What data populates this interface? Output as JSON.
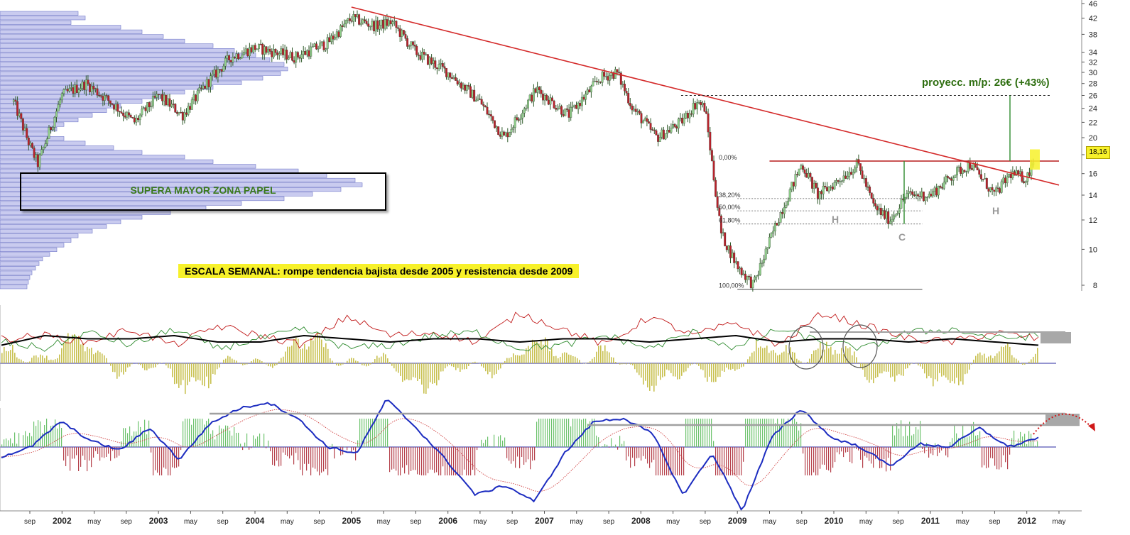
{
  "chart_data": [
    {
      "type": "line",
      "panel": "price",
      "scale": "log",
      "x_axis_labels": [
        "sep",
        "2002",
        "may",
        "sep",
        "2003",
        "may",
        "sep",
        "2004",
        "may",
        "sep",
        "2005",
        "may",
        "sep",
        "2006",
        "may",
        "sep",
        "2007",
        "may",
        "sep",
        "2008",
        "may",
        "sep",
        "2009",
        "may",
        "sep",
        "2010",
        "may",
        "sep",
        "2011",
        "may",
        "sep",
        "2012",
        "may"
      ],
      "y_ticks": [
        8,
        10,
        12,
        14,
        16,
        18,
        20,
        22,
        24,
        26,
        28,
        30,
        32,
        34,
        38,
        42,
        46
      ],
      "ylim": [
        7.5,
        46
      ],
      "price_series": [
        [
          "2001-07",
          25
        ],
        [
          "2001-09",
          19
        ],
        [
          "2001-10",
          17
        ],
        [
          "2002-01",
          26
        ],
        [
          "2002-04",
          28
        ],
        [
          "2002-07",
          25
        ],
        [
          "2002-10",
          22
        ],
        [
          "2003-01",
          26
        ],
        [
          "2003-04",
          23
        ],
        [
          "2003-07",
          28
        ],
        [
          "2003-10",
          33
        ],
        [
          "2004-01",
          35
        ],
        [
          "2004-06",
          33
        ],
        [
          "2004-10",
          36
        ],
        [
          "2005-01",
          42
        ],
        [
          "2005-04",
          40
        ],
        [
          "2005-06",
          41
        ],
        [
          "2005-09",
          34
        ],
        [
          "2006-01",
          30
        ],
        [
          "2006-05",
          25
        ],
        [
          "2006-08",
          20
        ],
        [
          "2006-12",
          27
        ],
        [
          "2007-04",
          23
        ],
        [
          "2007-08",
          29
        ],
        [
          "2007-10",
          30
        ],
        [
          "2007-12",
          24
        ],
        [
          "2008-03",
          20
        ],
        [
          "2008-06",
          22
        ],
        [
          "2008-08",
          25
        ],
        [
          "2008-09",
          24
        ],
        [
          "2008-10",
          16
        ],
        [
          "2008-11",
          11
        ],
        [
          "2009-01",
          9
        ],
        [
          "2009-03",
          8
        ],
        [
          "2009-06",
          12
        ],
        [
          "2009-09",
          17
        ],
        [
          "2009-11",
          14
        ],
        [
          "2010-01",
          15
        ],
        [
          "2010-04",
          17
        ],
        [
          "2010-06",
          13
        ],
        [
          "2010-08",
          12
        ],
        [
          "2010-10",
          14
        ],
        [
          "2011-01",
          14
        ],
        [
          "2011-04",
          16
        ],
        [
          "2011-06",
          17
        ],
        [
          "2011-09",
          14
        ],
        [
          "2011-11",
          16
        ],
        [
          "2012-01",
          15.5
        ],
        [
          "2012-02",
          18.16
        ]
      ],
      "last_price_label": "18,16",
      "resistance_level": 17.3,
      "downtrend_line": [
        [
          "2005-01",
          45
        ],
        [
          "2012-05",
          14.9
        ]
      ],
      "projection_target": 26,
      "fibonacci_levels": [
        {
          "label": "0,00%",
          "value": 17.3
        },
        {
          "label": "38,20%",
          "value": 13.7
        },
        {
          "label": "50,00%",
          "value": 12.7
        },
        {
          "label": "61,80%",
          "value": 11.7
        },
        {
          "label": "100,00%",
          "value": 7.8
        }
      ],
      "pattern_labels": [
        "H",
        "H",
        "C"
      ],
      "annotations": {
        "box_label": "SUPERA MAYOR ZONA PAPEL",
        "banner": "ESCALA SEMANAL: rompe tendencia bajista desde 2005 y resistencia desde 2009",
        "projection": "proyecc. m/p: 26€ (+43%)"
      }
    },
    {
      "type": "line",
      "panel": "oscillator",
      "series": [
        {
          "values": [
            0.5,
            0.6,
            0.4,
            0.8,
            0.3,
            0.9,
            0.6,
            0.3,
            1.2,
            0.6,
            0.7,
            0.4,
            1.3,
            0.8,
            0.3,
            1.2,
            0.6,
            1.0,
            0.3,
            1.3,
            0.9,
            0.5,
            0.4,
            0.7,
            0.5
          ]
        },
        {
          "values": [
            0.4,
            0.2,
            0.7,
            0.3,
            0.8,
            0.2,
            0.5,
            0.8,
            0.2,
            0.3,
            0.6,
            0.7,
            0.2,
            0.3,
            0.6,
            0.2,
            0.7,
            0.2,
            0.8,
            0.4,
            0.2,
            0.7,
            0.8,
            0.5,
            0.6
          ]
        },
        {
          "values": [
            0.3,
            0.6,
            0.5,
            0.5,
            0.6,
            0.4,
            0.4,
            0.6,
            0.5,
            0.4,
            0.5,
            0.5,
            0.4,
            0.5,
            0.5,
            0.4,
            0.5,
            0.6,
            0.4,
            0.5,
            0.5,
            0.4,
            0.5,
            0.4,
            0.3
          ]
        }
      ]
    },
    {
      "type": "line",
      "panel": "macd",
      "series": [
        {
          "values": [
            -0.3,
            0.0,
            0.8,
            0.2,
            -0.1,
            0.6,
            -0.4,
            0.7,
            1.2,
            1.4,
            0.9,
            0.0,
            -0.2,
            1.5,
            0.6,
            -0.4,
            -1.5,
            -1.2,
            -1.7,
            -0.2,
            0.8,
            0.9,
            0.4,
            -1.5,
            -0.2,
            -2.0,
            0.3,
            1.2,
            0.3,
            0.0,
            -0.6,
            0.1,
            0.0,
            0.6,
            0.0,
            0.3
          ]
        }
      ]
    }
  ]
}
